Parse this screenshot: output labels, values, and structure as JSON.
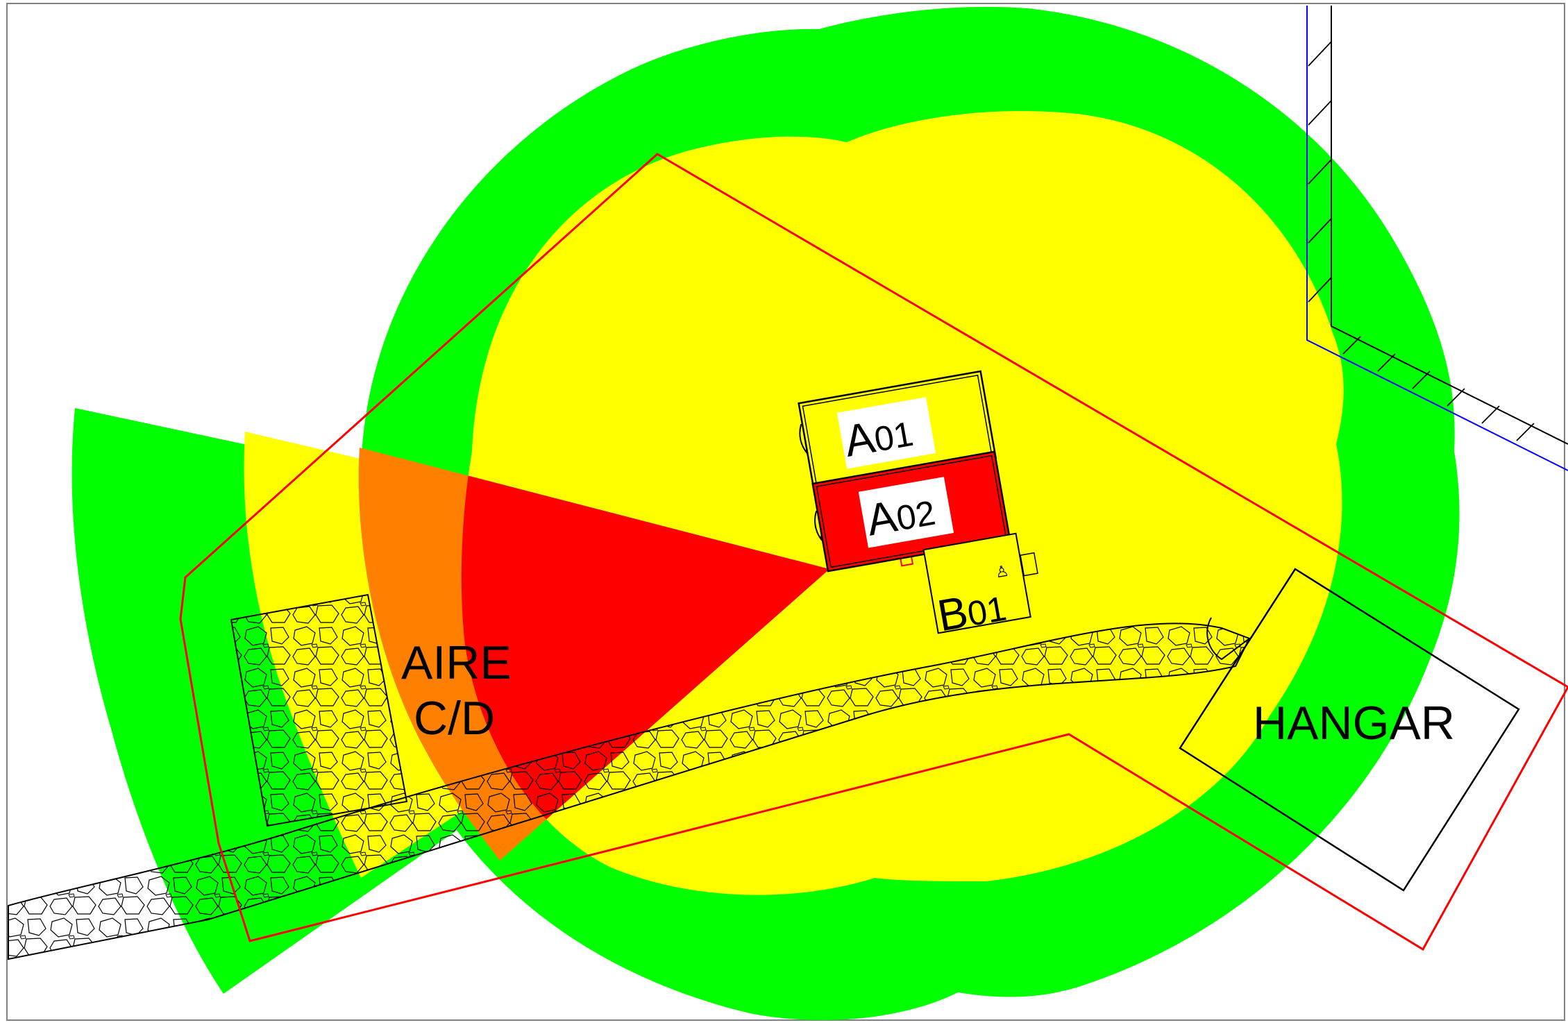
{
  "plan": {
    "zones": [
      {
        "id": "A01",
        "prefix": "A",
        "suffix": "01"
      },
      {
        "id": "A02",
        "prefix": "A",
        "suffix": "02"
      },
      {
        "id": "B01",
        "prefix": "B",
        "suffix": "01"
      }
    ],
    "area_labels": {
      "aire_line1": "AIRE",
      "aire_line2": "C/D",
      "hangar": "HANGAR"
    }
  },
  "colors": {
    "outer_zone": "#00ff00",
    "inner_zone": "#ffff00",
    "sector_red": "#ff0000",
    "sector_overlap": "#ff8000",
    "site_boundary": "#ff0000",
    "road_line": "#0000ff",
    "outline": "#000000"
  }
}
